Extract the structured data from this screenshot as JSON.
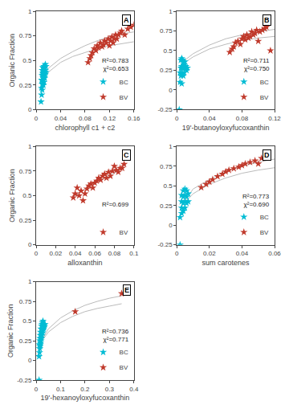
{
  "chart_data": [
    {
      "type": "scatter",
      "title": "A",
      "xlabel": "chlorophyll c1 + c2",
      "ylabel": "Organic Fraction",
      "xlim": [
        0,
        0.16
      ],
      "xticks": [
        0,
        0.04,
        0.08,
        0.12,
        0.16
      ],
      "ylim": [
        0,
        1.0
      ],
      "yticks": [
        0,
        0.25,
        0.5,
        0.75,
        1.0
      ],
      "annotations": [
        "R²=0.783",
        "χ²=0.653"
      ],
      "legend": "lower right",
      "grid": false,
      "series": [
        {
          "type": "line",
          "color": "#bbbbbb",
          "x": [
            0.008,
            0.02,
            0.04,
            0.06,
            0.08,
            0.1,
            0.12,
            0.14,
            0.16
          ],
          "values": [
            0.28,
            0.38,
            0.48,
            0.54,
            0.58,
            0.62,
            0.65,
            0.67,
            0.69
          ]
        },
        {
          "type": "line",
          "color": "#bbbbbb",
          "x": [
            0.008,
            0.02,
            0.04,
            0.06,
            0.08,
            0.1,
            0.12,
            0.14,
            0.16
          ],
          "values": [
            0.28,
            0.42,
            0.52,
            0.59,
            0.65,
            0.7,
            0.74,
            0.77,
            0.79
          ]
        },
        {
          "name": "BC",
          "type": "scatter",
          "marker": "star",
          "color": "#00bcd4",
          "x": [
            0.008,
            0.009,
            0.009,
            0.009,
            0.01,
            0.01,
            0.01,
            0.01,
            0.01,
            0.011,
            0.011,
            0.011,
            0.011,
            0.012,
            0.012,
            0.012,
            0.012,
            0.013,
            0.013,
            0.013,
            0.013,
            0.014,
            0.014,
            0.014,
            0.015,
            0.015,
            0.015,
            0.016,
            0.016
          ],
          "values": [
            0.08,
            0.15,
            0.22,
            0.3,
            0.2,
            0.26,
            0.3,
            0.35,
            0.4,
            0.28,
            0.33,
            0.37,
            0.43,
            0.25,
            0.3,
            0.36,
            0.42,
            0.28,
            0.33,
            0.38,
            0.44,
            0.32,
            0.38,
            0.44,
            0.36,
            0.4,
            0.46,
            0.38,
            0.44
          ]
        },
        {
          "name": "BV",
          "type": "scatter",
          "marker": "star",
          "color": "#c0392b",
          "x": [
            0.085,
            0.088,
            0.09,
            0.092,
            0.095,
            0.098,
            0.1,
            0.102,
            0.105,
            0.108,
            0.11,
            0.112,
            0.115,
            0.118,
            0.12,
            0.122,
            0.124,
            0.126,
            0.128,
            0.13,
            0.132,
            0.135,
            0.138,
            0.14,
            0.145,
            0.15,
            0.155,
            0.16
          ],
          "values": [
            0.48,
            0.52,
            0.55,
            0.58,
            0.62,
            0.6,
            0.65,
            0.63,
            0.68,
            0.64,
            0.66,
            0.7,
            0.68,
            0.72,
            0.65,
            0.7,
            0.74,
            0.68,
            0.72,
            0.76,
            0.72,
            0.76,
            0.78,
            0.8,
            0.76,
            0.82,
            0.84,
            0.86
          ]
        }
      ]
    },
    {
      "type": "scatter",
      "title": "B",
      "xlabel": "19'-butanoyloxyfucoxanthin",
      "xlim": [
        0,
        0.12
      ],
      "xticks": [
        0,
        0.04,
        0.08,
        0.12
      ],
      "ylim": [
        -0.25,
        1.0
      ],
      "yticks": [
        -0.25,
        0,
        0.25,
        0.5,
        0.75,
        1.0
      ],
      "annotations": [
        "R²=0.711",
        "χ²=0.750"
      ],
      "legend": "lower right",
      "grid": false,
      "series": [
        {
          "type": "line",
          "color": "#bbbbbb",
          "x": [
            0.003,
            0.01,
            0.02,
            0.04,
            0.06,
            0.08,
            0.1,
            0.12
          ],
          "values": [
            0.28,
            0.35,
            0.42,
            0.52,
            0.58,
            0.63,
            0.66,
            0.68
          ]
        },
        {
          "type": "line",
          "color": "#bbbbbb",
          "x": [
            0.003,
            0.01,
            0.02,
            0.04,
            0.06,
            0.08,
            0.1,
            0.12
          ],
          "values": [
            0.28,
            0.38,
            0.46,
            0.57,
            0.65,
            0.7,
            0.74,
            0.77
          ]
        },
        {
          "name": "BC",
          "type": "scatter",
          "marker": "star",
          "color": "#00bcd4",
          "x": [
            0.003,
            0.004,
            0.004,
            0.005,
            0.005,
            0.005,
            0.006,
            0.006,
            0.006,
            0.006,
            0.007,
            0.007,
            0.007,
            0.008,
            0.008,
            0.008,
            0.009,
            0.009,
            0.01,
            0.01,
            0.011,
            0.012,
            0.013
          ],
          "values": [
            -0.25,
            0.1,
            0.22,
            0.18,
            0.28,
            0.38,
            0.08,
            0.22,
            0.3,
            0.4,
            0.2,
            0.28,
            0.38,
            0.18,
            0.28,
            0.36,
            0.22,
            0.32,
            0.28,
            0.36,
            0.3,
            0.25,
            0.28
          ]
        },
        {
          "name": "BV",
          "type": "scatter",
          "marker": "star",
          "color": "#c0392b",
          "x": [
            0.065,
            0.068,
            0.07,
            0.072,
            0.075,
            0.078,
            0.08,
            0.082,
            0.084,
            0.086,
            0.088,
            0.09,
            0.092,
            0.094,
            0.096,
            0.098,
            0.1,
            0.102,
            0.105,
            0.108,
            0.11,
            0.115
          ],
          "values": [
            0.48,
            0.52,
            0.55,
            0.6,
            0.62,
            0.58,
            0.65,
            0.68,
            0.64,
            0.7,
            0.66,
            0.68,
            0.74,
            0.7,
            0.72,
            0.76,
            0.62,
            0.74,
            0.76,
            0.78,
            0.8,
            0.5
          ]
        }
      ]
    },
    {
      "type": "scatter",
      "title": "C",
      "xlabel": "alloxanthin",
      "ylabel": "Organic Fraction",
      "xlim": [
        0,
        0.1
      ],
      "xticks": [
        0,
        0.02,
        0.04,
        0.06,
        0.08,
        0.1
      ],
      "ylim": [
        0,
        1.0
      ],
      "yticks": [
        0,
        0.25,
        0.5,
        0.75,
        1.0
      ],
      "annotations": [
        "R²=0.699"
      ],
      "legend": "lower right",
      "grid": false,
      "series": [
        {
          "type": "line",
          "color": "#bbbbbb",
          "x": [
            0.038,
            0.055,
            0.07,
            0.088
          ],
          "values": [
            0.49,
            0.6,
            0.68,
            0.77
          ]
        },
        {
          "name": "BV",
          "type": "scatter",
          "marker": "star",
          "color": "#c0392b",
          "x": [
            0.038,
            0.04,
            0.042,
            0.044,
            0.046,
            0.048,
            0.05,
            0.052,
            0.054,
            0.056,
            0.058,
            0.06,
            0.062,
            0.064,
            0.066,
            0.068,
            0.07,
            0.072,
            0.074,
            0.076,
            0.078,
            0.08,
            0.082,
            0.084,
            0.086,
            0.088,
            0.09
          ],
          "values": [
            0.48,
            0.52,
            0.58,
            0.5,
            0.55,
            0.45,
            0.52,
            0.57,
            0.6,
            0.62,
            0.58,
            0.63,
            0.65,
            0.68,
            0.66,
            0.7,
            0.72,
            0.68,
            0.74,
            0.7,
            0.75,
            0.8,
            0.76,
            0.74,
            0.78,
            0.78,
            0.82
          ]
        }
      ]
    },
    {
      "type": "scatter",
      "title": "D",
      "xlabel": "sum carotenes",
      "xlim": [
        0,
        0.06
      ],
      "xticks": [
        0,
        0.02,
        0.04,
        0.06
      ],
      "ylim": [
        -0.25,
        1.0
      ],
      "yticks": [
        -0.25,
        0,
        0.25,
        0.5,
        0.75,
        1.0
      ],
      "annotations": [
        "R²=0.773",
        "χ²=0.690"
      ],
      "legend": "lower right",
      "grid": false,
      "series": [
        {
          "type": "line",
          "color": "#bbbbbb",
          "x": [
            0.002,
            0.01,
            0.02,
            0.03,
            0.04,
            0.05,
            0.06
          ],
          "values": [
            0.22,
            0.4,
            0.52,
            0.6,
            0.66,
            0.7,
            0.73
          ]
        },
        {
          "type": "line",
          "color": "#bbbbbb",
          "x": [
            0.002,
            0.01,
            0.02,
            0.03,
            0.04,
            0.05,
            0.06
          ],
          "values": [
            0.22,
            0.46,
            0.58,
            0.68,
            0.75,
            0.8,
            0.84
          ]
        },
        {
          "name": "BC",
          "type": "scatter",
          "marker": "star",
          "color": "#00bcd4",
          "x": [
            0.002,
            0.002,
            0.003,
            0.003,
            0.003,
            0.003,
            0.004,
            0.004,
            0.004,
            0.004,
            0.005,
            0.005,
            0.005,
            0.005,
            0.006,
            0.006,
            0.006,
            0.007,
            0.007
          ],
          "values": [
            -0.25,
            0.1,
            0.15,
            0.22,
            0.3,
            0.38,
            0.18,
            0.28,
            0.36,
            0.44,
            0.22,
            0.3,
            0.38,
            0.46,
            0.28,
            0.36,
            0.44,
            0.3,
            0.4
          ]
        },
        {
          "name": "BV",
          "type": "scatter",
          "marker": "star",
          "color": "#c0392b",
          "x": [
            0.015,
            0.018,
            0.02,
            0.022,
            0.025,
            0.028,
            0.03,
            0.032,
            0.035,
            0.038,
            0.04,
            0.042,
            0.045,
            0.048,
            0.05,
            0.052,
            0.055
          ],
          "values": [
            0.48,
            0.52,
            0.55,
            0.58,
            0.62,
            0.65,
            0.68,
            0.7,
            0.72,
            0.74,
            0.76,
            0.78,
            0.8,
            0.82,
            0.78,
            0.85,
            0.88
          ]
        }
      ]
    },
    {
      "type": "scatter",
      "title": "E",
      "xlabel": "19'-hexanoyloxyfucoxanthin",
      "ylabel": "Organic Fraction",
      "xlim": [
        0,
        0.4
      ],
      "xticks": [
        0,
        0.1,
        0.2,
        0.3,
        0.4
      ],
      "ylim": [
        -0.25,
        1.0
      ],
      "yticks": [
        -0.25,
        0,
        0.25,
        0.5,
        0.75,
        1.0
      ],
      "annotations": [
        "R²=0.736",
        "χ²=0.771"
      ],
      "legend": "lower right",
      "grid": false,
      "series": [
        {
          "type": "line",
          "color": "#bbbbbb",
          "x": [
            0.012,
            0.05,
            0.1,
            0.15,
            0.2,
            0.25,
            0.3,
            0.35
          ],
          "values": [
            0.2,
            0.36,
            0.48,
            0.56,
            0.62,
            0.66,
            0.69,
            0.72
          ]
        },
        {
          "type": "line",
          "color": "#bbbbbb",
          "x": [
            0.012,
            0.05,
            0.1,
            0.15,
            0.2,
            0.25,
            0.3,
            0.35
          ],
          "values": [
            0.2,
            0.4,
            0.54,
            0.63,
            0.7,
            0.75,
            0.79,
            0.82
          ]
        },
        {
          "name": "BC",
          "type": "scatter",
          "marker": "star",
          "color": "#00bcd4",
          "x": [
            0.012,
            0.012,
            0.014,
            0.014,
            0.015,
            0.015,
            0.016,
            0.016,
            0.017,
            0.017,
            0.018,
            0.018,
            0.02,
            0.02,
            0.022,
            0.022,
            0.024,
            0.024,
            0.026,
            0.026,
            0.028,
            0.028,
            0.03,
            0.032,
            0.034,
            0.036
          ],
          "values": [
            -0.25,
            0.05,
            0.1,
            0.2,
            0.15,
            0.25,
            0.18,
            0.28,
            0.2,
            0.32,
            0.22,
            0.36,
            0.25,
            0.4,
            0.28,
            0.44,
            0.32,
            0.46,
            0.35,
            0.48,
            0.38,
            0.5,
            0.4,
            0.42,
            0.44,
            0.46
          ]
        },
        {
          "name": "BV",
          "type": "scatter",
          "marker": "star",
          "color": "#c0392b",
          "x": [
            0.16,
            0.35
          ],
          "values": [
            0.62,
            0.85
          ]
        }
      ]
    }
  ]
}
